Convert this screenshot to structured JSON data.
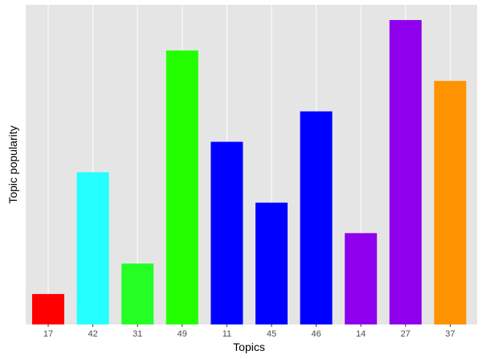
{
  "chart_data": {
    "type": "bar",
    "title": "",
    "xlabel": "Topics",
    "ylabel": "Topic popularity",
    "categories": [
      "17",
      "42",
      "31",
      "49",
      "11",
      "45",
      "46",
      "14",
      "27",
      "37"
    ],
    "values": [
      1,
      5,
      2,
      9,
      6,
      4,
      7,
      3,
      10,
      8
    ],
    "ylim": [
      0,
      10.5
    ],
    "y_ticks_shown": false,
    "grid": true,
    "legend": "none",
    "colors": [
      "#FF0000",
      "#24FFFF",
      "#24FF24",
      "#24FF00",
      "#0000FF",
      "#0000FF",
      "#0000FF",
      "#8E00ED",
      "#8E00ED",
      "#FF9200"
    ],
    "panel_background": "#E5E5E5",
    "grid_color": "#FFFFFF"
  }
}
